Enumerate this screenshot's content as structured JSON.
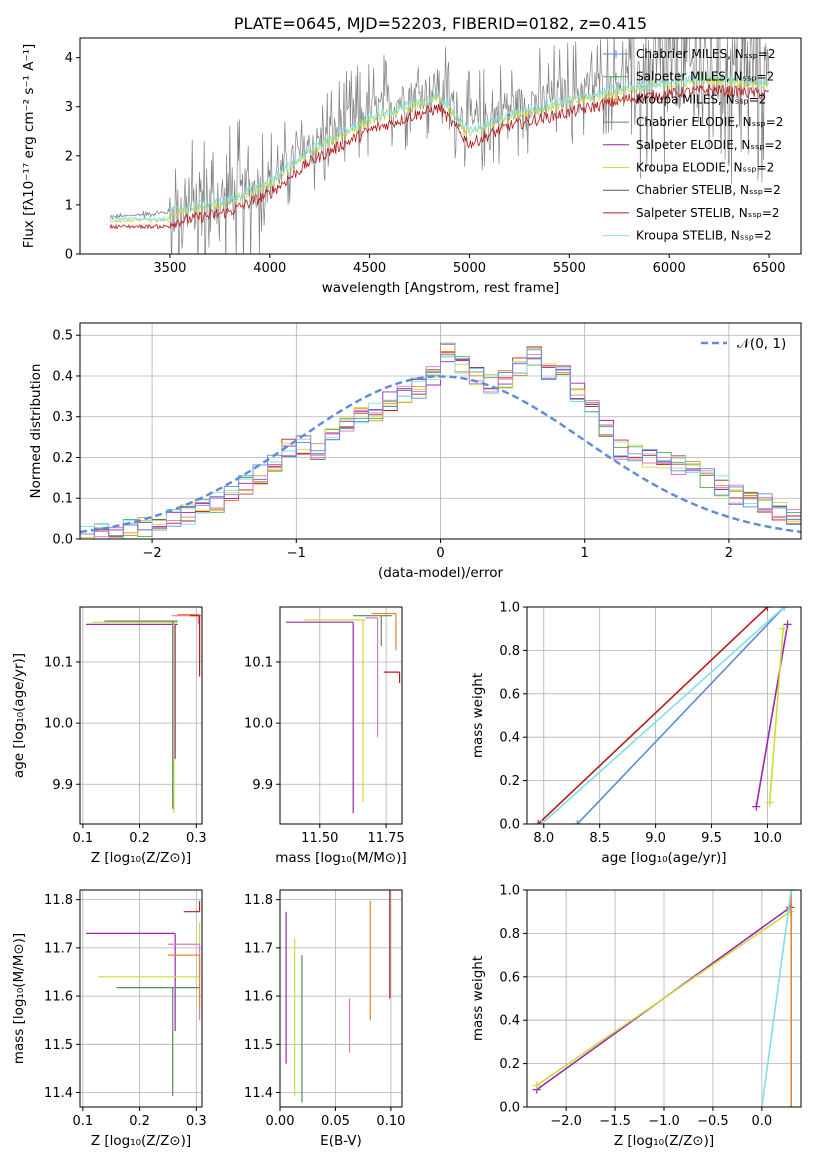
{
  "chart_data": [
    {
      "id": "spectrum",
      "type": "line",
      "title": "PLATE=0645, MJD=52203, FIBERID=0182, z=0.415",
      "xlabel": "wavelength [Angstrom, rest frame]",
      "ylabel": "Flux [fλ10⁻¹⁷ erg cm⁻² s⁻¹ A⁻¹]",
      "xlim": [
        3050,
        6660
      ],
      "ylim": [
        0,
        4.4
      ],
      "xticks": [
        3500,
        4000,
        4500,
        5000,
        5500,
        6000,
        6500
      ],
      "yticks": [
        0,
        1,
        2,
        3,
        4
      ],
      "grid": false,
      "legend_position": "top-right",
      "legend": [
        {
          "label": "Chabrier MILES, Nₛₛₚ=2",
          "color": "#5b8bd9",
          "marker": "+"
        },
        {
          "label": "Salpeter MILES, Nₛₛₚ=2",
          "color": "#4caf50",
          "marker": "+"
        },
        {
          "label": "Kroupa MILES, Nₛₛₚ=2",
          "color": "#e6862a",
          "marker": "+"
        },
        {
          "label": "Chabrier ELODIE, Nₛₛₚ=2",
          "color": "#5a8a5a"
        },
        {
          "label": "Salpeter ELODIE, Nₛₛₚ=2",
          "color": "#9c27b0"
        },
        {
          "label": "Kroupa ELODIE, Nₛₛₚ=2",
          "color": "#cddc39"
        },
        {
          "label": "Chabrier STELIB, Nₛₛₚ=2",
          "color": "#555555"
        },
        {
          "label": "Salpeter STELIB, Nₛₛₚ=2",
          "color": "#b71c1c"
        },
        {
          "label": "Kroupa STELIB, Nₛₛₚ=2",
          "color": "#80deea"
        }
      ],
      "data_envelope": {
        "x": [
          3200,
          3500,
          3800,
          4000,
          4200,
          4500,
          4700,
          4850,
          5000,
          5200,
          5500,
          5800,
          6000,
          6200,
          6500
        ],
        "y": [
          0.75,
          0.85,
          1.1,
          1.5,
          2.2,
          2.9,
          3.2,
          3.4,
          2.6,
          3.0,
          3.3,
          3.6,
          3.7,
          3.8,
          3.7
        ]
      }
    },
    {
      "id": "residuals",
      "type": "histogram",
      "xlabel": "(data-model)/error",
      "ylabel": "Normed distribution",
      "xlim": [
        -2.5,
        2.5
      ],
      "ylim": [
        0,
        0.53
      ],
      "xticks": [
        -2,
        -1,
        0,
        1,
        2
      ],
      "yticks": [
        0.0,
        0.1,
        0.2,
        0.3,
        0.4,
        0.5
      ],
      "grid": true,
      "legend_position": "top-right",
      "legend": [
        {
          "label": "𝒩(0, 1)",
          "color": "#5b8bd9",
          "style": "dashed"
        }
      ],
      "bins_start": -2.5,
      "bin_width": 0.1,
      "histogram_values": [
        0.01,
        0.015,
        0.02,
        0.03,
        0.03,
        0.04,
        0.05,
        0.06,
        0.08,
        0.09,
        0.11,
        0.13,
        0.16,
        0.19,
        0.22,
        0.23,
        0.22,
        0.26,
        0.28,
        0.3,
        0.31,
        0.34,
        0.35,
        0.37,
        0.4,
        0.46,
        0.43,
        0.4,
        0.38,
        0.39,
        0.42,
        0.45,
        0.41,
        0.4,
        0.36,
        0.32,
        0.27,
        0.22,
        0.21,
        0.2,
        0.19,
        0.18,
        0.17,
        0.15,
        0.13,
        0.11,
        0.1,
        0.09,
        0.07,
        0.06
      ]
    },
    {
      "id": "age-vs-Z",
      "type": "errorbar",
      "xlabel": "Z [log₁₀(Z/Z⊙)]",
      "ylabel": "age  [log₁₀(age/yr)]",
      "xlim": [
        0.095,
        0.31
      ],
      "ylim": [
        9.835,
        10.19
      ],
      "xticks": [
        0.1,
        0.2,
        0.3
      ],
      "yticks": [
        9.9,
        10.0,
        10.1
      ],
      "grid": true
    },
    {
      "id": "age-vs-mass",
      "type": "errorbar",
      "xlabel": "mass [log₁₀(M/M⊙)]",
      "ylabel": "",
      "xlim": [
        11.35,
        11.81
      ],
      "ylim": [
        9.835,
        10.19
      ],
      "xticks": [
        11.5,
        11.75
      ],
      "yticks": [
        9.9,
        10.0,
        10.1
      ],
      "grid": true
    },
    {
      "id": "weight-vs-age",
      "type": "line",
      "xlabel": "age  [log₁₀(age/yr)]",
      "ylabel": "mass weight",
      "xlim": [
        7.85,
        10.3
      ],
      "ylim": [
        0,
        1
      ],
      "xticks": [
        8.0,
        8.5,
        9.0,
        9.5,
        10.0
      ],
      "yticks": [
        0.0,
        0.2,
        0.4,
        0.6,
        0.8,
        1.0
      ],
      "grid": true,
      "series": [
        {
          "color": "#5b8bd9",
          "x": [
            8.3,
            10.15
          ],
          "y": [
            0.0,
            1.0
          ]
        },
        {
          "color": "#b71c1c",
          "x": [
            7.95,
            10.0
          ],
          "y": [
            0.0,
            1.0
          ]
        },
        {
          "color": "#9c27b0",
          "x": [
            9.9,
            10.18
          ],
          "y": [
            0.08,
            0.92
          ]
        },
        {
          "color": "#cddc39",
          "x": [
            10.02,
            10.14
          ],
          "y": [
            0.1,
            0.9
          ]
        },
        {
          "color": "#80deea",
          "x": [
            7.98,
            10.15
          ],
          "y": [
            0.0,
            1.0
          ]
        }
      ]
    },
    {
      "id": "mass-vs-Z",
      "type": "errorbar",
      "xlabel": "Z [log₁₀(Z/Z⊙)]",
      "ylabel": "mass [log₁₀(M/M⊙)]",
      "xlim": [
        0.095,
        0.31
      ],
      "ylim": [
        11.37,
        11.82
      ],
      "xticks": [
        0.1,
        0.2,
        0.3
      ],
      "yticks": [
        11.4,
        11.5,
        11.6,
        11.7,
        11.8
      ],
      "grid": true
    },
    {
      "id": "mass-vs-EBV",
      "type": "errorbar",
      "xlabel": "E(B-V)",
      "ylabel": "",
      "xlim": [
        0.0,
        0.11
      ],
      "ylim": [
        11.37,
        11.82
      ],
      "xticks": [
        0.0,
        0.05,
        0.1
      ],
      "yticks": [
        11.4,
        11.5,
        11.6,
        11.7,
        11.8
      ],
      "grid": true
    },
    {
      "id": "weight-vs-Z",
      "type": "line",
      "xlabel": "Z [log₁₀(Z/Z⊙)]",
      "ylabel": "mass weight",
      "xlim": [
        -2.4,
        0.4
      ],
      "ylim": [
        0,
        1
      ],
      "xticks": [
        -2.0,
        -1.5,
        -1.0,
        -0.5,
        0.0
      ],
      "yticks": [
        0.0,
        0.2,
        0.4,
        0.6,
        0.8,
        1.0
      ],
      "grid": true,
      "series": [
        {
          "color": "#9c27b0",
          "x": [
            -2.3,
            0.29
          ],
          "y": [
            0.08,
            0.92
          ]
        },
        {
          "color": "#cddc39",
          "x": [
            -2.3,
            0.29
          ],
          "y": [
            0.1,
            0.9
          ]
        },
        {
          "color": "#e6862a",
          "x": [
            0.3,
            0.3
          ],
          "y": [
            0.0,
            1.0
          ]
        },
        {
          "color": "#80deea",
          "x": [
            0.0,
            0.3
          ],
          "y": [
            0.0,
            1.0
          ]
        }
      ]
    }
  ]
}
